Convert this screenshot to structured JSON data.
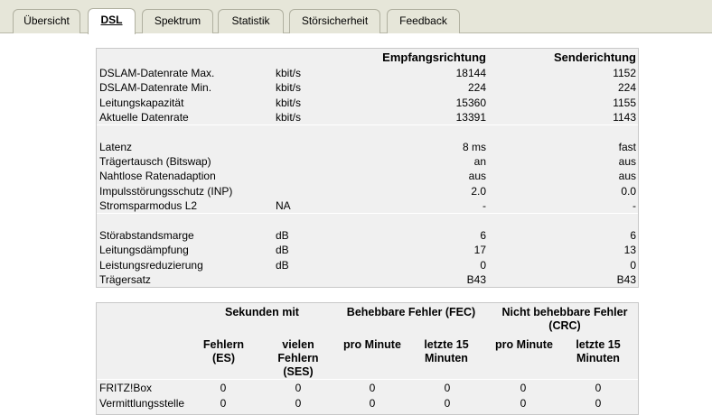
{
  "tabs": [
    {
      "label": "Übersicht",
      "active": false
    },
    {
      "label": "DSL",
      "active": true
    },
    {
      "label": "Spektrum",
      "active": false
    },
    {
      "label": "Statistik",
      "active": false
    },
    {
      "label": "Störsicherheit",
      "active": false
    },
    {
      "label": "Feedback",
      "active": false
    }
  ],
  "line_table": {
    "header_rx": "Empfangsrichtung",
    "header_tx": "Senderichtung",
    "rows": [
      {
        "label": "DSLAM-Datenrate Max.",
        "unit": "kbit/s",
        "rx": "18144",
        "tx": "1152"
      },
      {
        "label": "DSLAM-Datenrate Min.",
        "unit": "kbit/s",
        "rx": "224",
        "tx": "224"
      },
      {
        "label": "Leitungskapazität",
        "unit": "kbit/s",
        "rx": "15360",
        "tx": "1155"
      },
      {
        "label": "Aktuelle Datenrate",
        "unit": "kbit/s",
        "rx": "13391",
        "tx": "1143"
      },
      {
        "label": "Latenz",
        "unit": "",
        "rx": "8 ms",
        "tx": "fast"
      },
      {
        "label": "Trägertausch (Bitswap)",
        "unit": "",
        "rx": "an",
        "tx": "aus"
      },
      {
        "label": "Nahtlose Ratenadaption",
        "unit": "",
        "rx": "aus",
        "tx": "aus"
      },
      {
        "label": "Impulsstörungsschutz (INP)",
        "unit": "",
        "rx": "2.0",
        "tx": "0.0"
      },
      {
        "label": "Stromsparmodus L2",
        "unit": "NA",
        "rx": "-",
        "tx": "-"
      },
      {
        "label": "Störabstandsmarge",
        "unit": "dB",
        "rx": "6",
        "tx": "6"
      },
      {
        "label": "Leitungsdämpfung",
        "unit": "dB",
        "rx": "17",
        "tx": "13"
      },
      {
        "label": "Leistungsreduzierung",
        "unit": "dB",
        "rx": "0",
        "tx": "0"
      },
      {
        "label": "Trägersatz",
        "unit": "",
        "rx": "B43",
        "tx": "B43"
      }
    ]
  },
  "error_table": {
    "group_seconds": "Sekunden mit",
    "group_fec": "Behebbare Fehler (FEC)",
    "group_crc": "Nicht behebbare Fehler (CRC)",
    "sub_es": "Fehlern (ES)",
    "sub_ses": "vielen Fehlern (SES)",
    "sub_fec_min": "pro Minute",
    "sub_fec_15": "letzte 15 Minuten",
    "sub_crc_min": "pro Minute",
    "sub_crc_15": "letzte 15 Minuten",
    "rows": [
      {
        "label": "FRITZ!Box",
        "values": [
          "0",
          "0",
          "0",
          "0",
          "0",
          "0"
        ]
      },
      {
        "label": "Vermittlungsstelle",
        "values": [
          "0",
          "0",
          "0",
          "0",
          "0",
          "0"
        ]
      }
    ]
  }
}
